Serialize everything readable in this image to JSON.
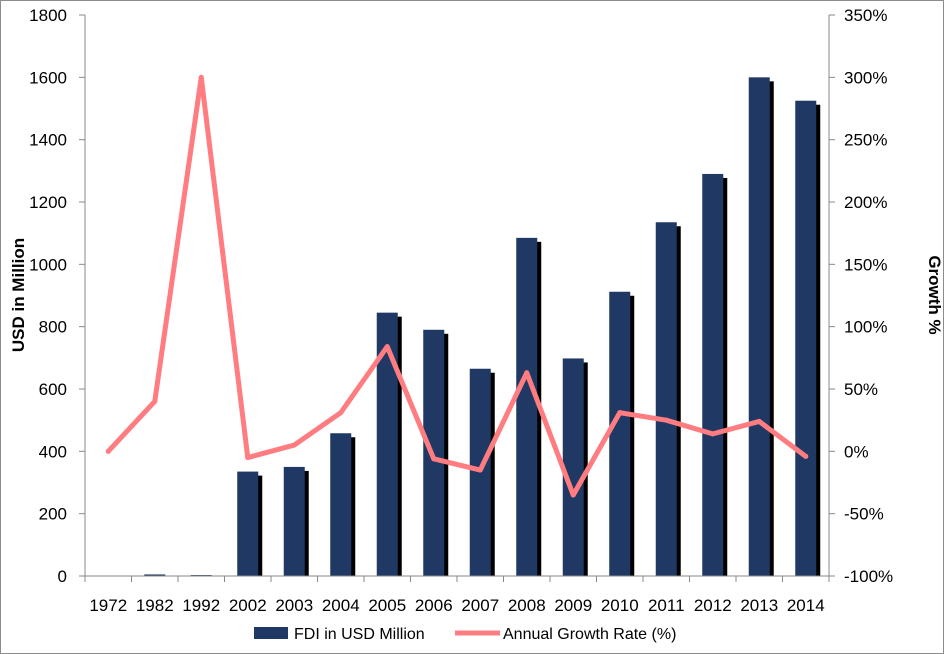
{
  "chart_data": {
    "type": "bar",
    "categories": [
      "1972",
      "1982",
      "1992",
      "2002",
      "2003",
      "2004",
      "2005",
      "2006",
      "2007",
      "2008",
      "2009",
      "2010",
      "2011",
      "2012",
      "2013",
      "2014"
    ],
    "series": [
      {
        "name": "FDI in USD Million",
        "type": "bar",
        "axis": "left",
        "color": "#1f3864",
        "values": [
          0,
          5,
          3,
          335,
          350,
          458,
          845,
          790,
          665,
          1085,
          698,
          912,
          1135,
          1290,
          1600,
          1525
        ]
      },
      {
        "name": "Annual Growth Rate (%)",
        "type": "line",
        "axis": "right",
        "color": "#ff7c80",
        "values": [
          0,
          40,
          300,
          -5,
          5,
          31,
          84,
          -6,
          -15,
          63,
          -35,
          31,
          25,
          14,
          24,
          -4
        ]
      }
    ],
    "ylabel": "USD in Million",
    "ylabel_right": "Growth %",
    "ylim": [
      0,
      1800
    ],
    "ylim_right": [
      -100,
      350
    ],
    "yticks": [
      "0",
      "200",
      "400",
      "600",
      "800",
      "1000",
      "1200",
      "1400",
      "1600",
      "1800"
    ],
    "yticks_right": [
      "-100%",
      "-50%",
      "0%",
      "50%",
      "100%",
      "150%",
      "200%",
      "250%",
      "300%",
      "350%"
    ],
    "grid": false,
    "legend_position": "bottom"
  }
}
